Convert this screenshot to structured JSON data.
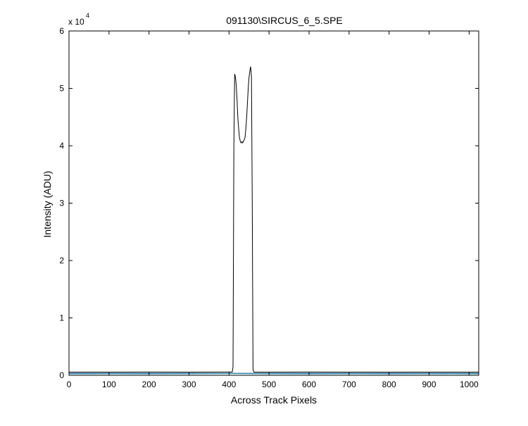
{
  "chart_data": {
    "type": "line",
    "title": "091130\\SIRCUS_6_5.SPE",
    "xlabel": "Across Track Pixels",
    "ylabel": "Intensity (ADU)",
    "xlim": [
      0,
      1024
    ],
    "ylim": [
      0,
      60000
    ],
    "x_ticks": [
      0,
      100,
      200,
      300,
      400,
      500,
      600,
      700,
      800,
      900,
      1000
    ],
    "y_ticks": [
      0,
      1,
      2,
      3,
      4,
      5,
      6
    ],
    "y_exponent_label": "x 10",
    "y_exponent_power": "4",
    "y_scale": 10000,
    "grid": false,
    "series": [
      {
        "color": "#000000",
        "x": [
          0,
          100,
          200,
          300,
          400,
          408,
          410,
          412,
          414,
          416,
          418,
          420,
          422,
          424,
          426,
          428,
          430,
          432,
          434,
          436,
          438,
          440,
          442,
          444,
          446,
          448,
          450,
          452,
          454,
          456,
          458,
          460,
          462,
          464,
          466,
          468,
          470,
          472,
          474,
          476,
          478,
          500,
          600,
          700,
          800,
          900,
          1024
        ],
        "values": [
          550,
          550,
          560,
          550,
          560,
          560,
          1500,
          40000,
          52500,
          52000,
          50500,
          48000,
          45000,
          43000,
          41500,
          40800,
          40500,
          40700,
          40500,
          40800,
          41000,
          41500,
          43000,
          45000,
          47500,
          50000,
          52000,
          53000,
          53800,
          52000,
          30000,
          1000,
          560,
          550,
          555,
          550,
          555,
          550,
          560,
          550,
          555,
          550,
          560,
          550,
          555,
          550,
          550
        ]
      },
      {
        "color": "#1f4fa0",
        "x": [
          0,
          100,
          200,
          300,
          400,
          500,
          600,
          700,
          800,
          900,
          1024
        ],
        "values": [
          350,
          360,
          350,
          355,
          350,
          360,
          350,
          355,
          350,
          360,
          350
        ]
      },
      {
        "color": "#2aa5b5",
        "x": [
          0,
          100,
          200,
          300,
          400,
          500,
          600,
          700,
          800,
          900,
          1024
        ],
        "values": [
          250,
          255,
          250,
          260,
          300,
          255,
          250,
          255,
          250,
          255,
          250
        ]
      }
    ]
  }
}
